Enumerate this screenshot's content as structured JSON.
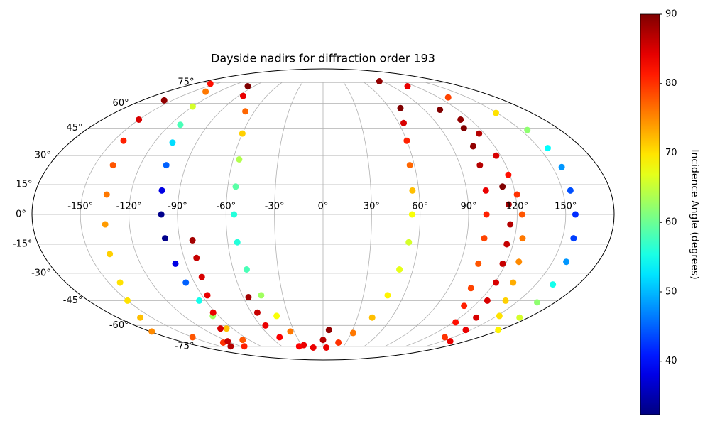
{
  "chart_data": {
    "type": "scatter",
    "projection": "mollweide",
    "title": "Dayside nadirs for diffraction order 193",
    "colorbar_label": "Incidence Angle (degrees)",
    "colormap": "jet",
    "clim": [
      32.3,
      90
    ],
    "colorbar_ticks": [
      40,
      50,
      60,
      70,
      80,
      90
    ],
    "grid": true,
    "xticks": [
      {
        "value": -150,
        "label": "-150°"
      },
      {
        "value": -120,
        "label": "-120°"
      },
      {
        "value": -90,
        "label": "-90°"
      },
      {
        "value": -60,
        "label": "-60°"
      },
      {
        "value": -30,
        "label": "-30°"
      },
      {
        "value": 0,
        "label": "0°"
      },
      {
        "value": 30,
        "label": "30°"
      },
      {
        "value": 60,
        "label": "60°"
      },
      {
        "value": 90,
        "label": "90°"
      },
      {
        "value": 120,
        "label": "120°"
      },
      {
        "value": 150,
        "label": "150°"
      }
    ],
    "yticks": [
      {
        "value": -75,
        "label": "-75°"
      },
      {
        "value": -60,
        "label": "-60°"
      },
      {
        "value": -45,
        "label": "-45°"
      },
      {
        "value": -30,
        "label": "-30°"
      },
      {
        "value": -15,
        "label": "-15°"
      },
      {
        "value": 0,
        "label": "0°"
      },
      {
        "value": 15,
        "label": "15°"
      },
      {
        "value": 30,
        "label": "30°"
      },
      {
        "value": 45,
        "label": "45°"
      },
      {
        "value": 60,
        "label": "60°"
      },
      {
        "value": 75,
        "label": "75°"
      }
    ],
    "x": [
      -158,
      -150,
      -143,
      -138,
      -135,
      -135,
      -137,
      -142,
      -150,
      -160,
      -178,
      -150,
      -130,
      -115,
      -158,
      -135,
      -120,
      -112,
      -107,
      -103,
      -101,
      -100,
      -99,
      -97,
      -96,
      -95,
      -95,
      -96,
      -98,
      -82,
      -82,
      -83,
      -86,
      -92,
      -102,
      -120,
      -135,
      -98,
      -85,
      -68,
      -60,
      -56,
      -55,
      -55,
      -54,
      -51,
      -46,
      -40,
      -34,
      -27,
      -56,
      -55,
      -55,
      -50,
      -35,
      -15,
      0,
      6,
      70,
      64,
      60,
      57,
      56,
      55,
      54,
      51,
      48,
      43,
      32,
      20,
      5,
      86,
      110,
      130,
      149,
      155,
      156,
      156,
      155,
      156,
      157,
      159,
      162,
      166,
      172,
      178,
      104,
      112,
      116,
      117,
      119,
      121,
      123,
      125,
      128,
      133,
      140,
      152,
      108,
      105,
      103,
      102,
      101,
      101,
      102,
      106,
      112,
      122,
      140,
      113,
      115,
      116,
      116,
      118,
      121,
      126,
      134,
      145,
      160
    ],
    "y": [
      62,
      50,
      38,
      25,
      10,
      -5,
      -20,
      -35,
      -45,
      -55,
      -64,
      -68,
      -72,
      -75,
      74,
      68,
      58,
      47,
      37,
      25,
      12,
      0,
      -12,
      -25,
      -35,
      -45,
      -54,
      -62,
      -70,
      -13,
      -22,
      -32,
      -42,
      -52,
      -62,
      -71,
      -75,
      72,
      65,
      55,
      42,
      28,
      14,
      0,
      -14,
      -28,
      -42,
      -54,
      -64,
      -74,
      -43,
      -52,
      -60,
      -68,
      -75,
      -76,
      -70,
      -63,
      57,
      48,
      38,
      25,
      12,
      0,
      -14,
      -28,
      -42,
      -55,
      -65,
      -72,
      -76,
      76,
      72,
      64,
      54,
      44,
      34,
      24,
      12,
      0,
      -12,
      -24,
      -36,
      -46,
      -55,
      -63,
      56,
      50,
      42,
      30,
      20,
      10,
      0,
      -12,
      -24,
      -35,
      -45,
      -54,
      45,
      35,
      25,
      12,
      0,
      -12,
      -25,
      -38,
      -48,
      -58,
      -68,
      14,
      5,
      -5,
      -15,
      -25,
      -35,
      -45,
      -55,
      -63,
      -71
    ],
    "values": [
      89,
      85,
      81,
      78,
      76,
      74,
      71,
      70,
      70,
      72,
      75,
      78,
      80,
      81,
      82,
      76,
      66,
      58,
      52,
      45,
      38,
      33,
      33,
      38,
      45,
      55,
      63,
      72,
      78,
      88,
      86,
      85,
      84,
      84,
      85,
      86,
      87,
      90,
      84,
      77,
      71,
      64,
      59,
      56,
      56,
      58,
      63,
      68,
      76,
      84,
      88,
      86,
      84,
      83,
      83,
      84,
      87,
      89,
      90,
      85,
      81,
      77,
      72,
      68,
      66,
      67,
      69,
      72,
      76,
      80,
      84,
      89,
      84,
      79,
      70,
      62,
      54,
      48,
      44,
      42,
      43,
      48,
      55,
      62,
      66,
      69,
      90,
      89,
      87,
      85,
      82,
      80,
      78,
      76,
      75,
      73,
      71,
      70,
      90,
      89,
      87,
      84,
      81,
      79,
      78,
      79,
      81,
      82,
      80,
      90,
      88,
      87,
      86,
      86,
      85,
      85,
      85,
      84,
      84
    ]
  }
}
